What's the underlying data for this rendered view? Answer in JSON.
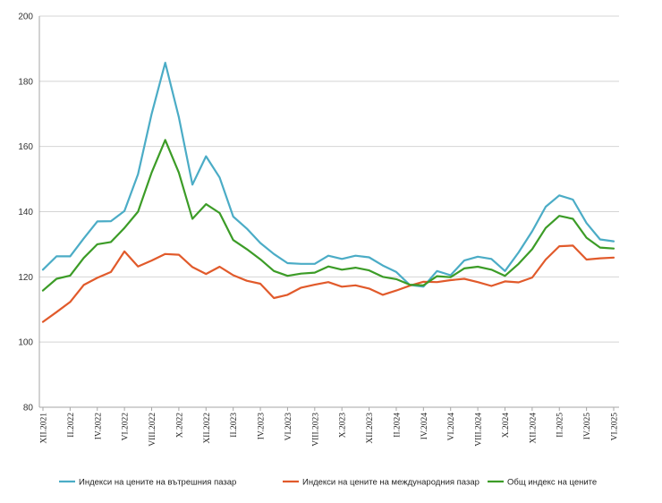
{
  "chart_data": {
    "type": "line",
    "title": "",
    "xlabel": "",
    "ylabel": "",
    "ylim": [
      80,
      200
    ],
    "yticks": [
      80,
      100,
      120,
      140,
      160,
      180,
      200
    ],
    "grid": true,
    "legend_position": "bottom",
    "x": [
      "XII.2021",
      "I.2022",
      "II.2022",
      "III.2022",
      "IV.2022",
      "V.2022",
      "VI.2022",
      "VII.2022",
      "VIII.2022",
      "IX.2022",
      "X.2022",
      "XI.2022",
      "XII.2022",
      "I.2023",
      "II.2023",
      "III.2023",
      "IV.2023",
      "V.2023",
      "VI.2023",
      "VII.2023",
      "VIII.2023",
      "IX.2023",
      "X.2023",
      "XI.2023",
      "XII.2023",
      "I.2024",
      "II.2024",
      "III.2024",
      "IV.2024",
      "V.2024",
      "VI.2024",
      "VII.2024",
      "VIII.2024",
      "IX.2024",
      "X.2024",
      "XI.2024",
      "XII.2024",
      "I.2025",
      "II.2025",
      "III.2025",
      "IV.2025",
      "V.2025",
      "VI.2025"
    ],
    "x_tick_labels": [
      "XII.2021",
      "II.2022",
      "IV.2022",
      "VI.2022",
      "VIII.2022",
      "X.2022",
      "XII.2022",
      "II.2023",
      "IV.2023",
      "VI.2023",
      "VIII.2023",
      "X.2023",
      "XII.2023",
      "II.2024",
      "IV.2024",
      "VI.2024",
      "VIII.2024",
      "X.2024",
      "XII.2024",
      "II.2025",
      "IV.2025",
      "VI.2025"
    ],
    "series": [
      {
        "name": "Индекси на цените на вътрешния пазар",
        "color": "#4bacc6",
        "values": [
          122.2,
          126.3,
          126.3,
          131.8,
          137.0,
          137.1,
          140.2,
          151.5,
          170.0,
          185.7,
          169.0,
          148.3,
          157.0,
          150.5,
          138.5,
          134.8,
          130.4,
          127.0,
          124.2,
          124.0,
          124.0,
          126.5,
          125.5,
          126.5,
          126.0,
          123.5,
          121.5,
          117.5,
          117.0,
          121.8,
          120.5,
          125.0,
          126.2,
          125.5,
          121.8,
          127.5,
          134.0,
          141.5,
          145.0,
          143.7,
          136.5,
          131.5,
          130.9
        ]
      },
      {
        "name": "Индекси на цените на международния пазар",
        "color": "#e15a2b",
        "values": [
          106.2,
          109.2,
          112.3,
          117.5,
          119.7,
          121.5,
          127.8,
          123.2,
          125.0,
          127.0,
          126.8,
          123.0,
          120.9,
          123.1,
          120.5,
          118.8,
          117.9,
          113.5,
          114.5,
          116.7,
          117.6,
          118.4,
          117.0,
          117.4,
          116.4,
          114.5,
          115.8,
          117.3,
          118.5,
          118.4,
          119.0,
          119.4,
          118.4,
          117.2,
          118.6,
          118.3,
          119.8,
          125.3,
          129.4,
          129.6,
          125.3,
          125.7,
          125.9
        ]
      },
      {
        "name": "Общ индекс на цените",
        "color": "#3c9c27",
        "values": [
          115.8,
          119.4,
          120.4,
          125.8,
          130.0,
          130.7,
          135.0,
          140.0,
          152.0,
          162.0,
          152.0,
          137.8,
          142.3,
          139.6,
          131.3,
          128.5,
          125.4,
          121.8,
          120.3,
          121.0,
          121.3,
          123.2,
          122.2,
          122.8,
          122.0,
          120.0,
          119.3,
          117.6,
          117.4,
          120.2,
          119.9,
          122.6,
          123.1,
          122.2,
          120.3,
          124.0,
          128.5,
          135.0,
          138.7,
          137.8,
          132.0,
          129.0,
          128.7
        ]
      }
    ]
  }
}
